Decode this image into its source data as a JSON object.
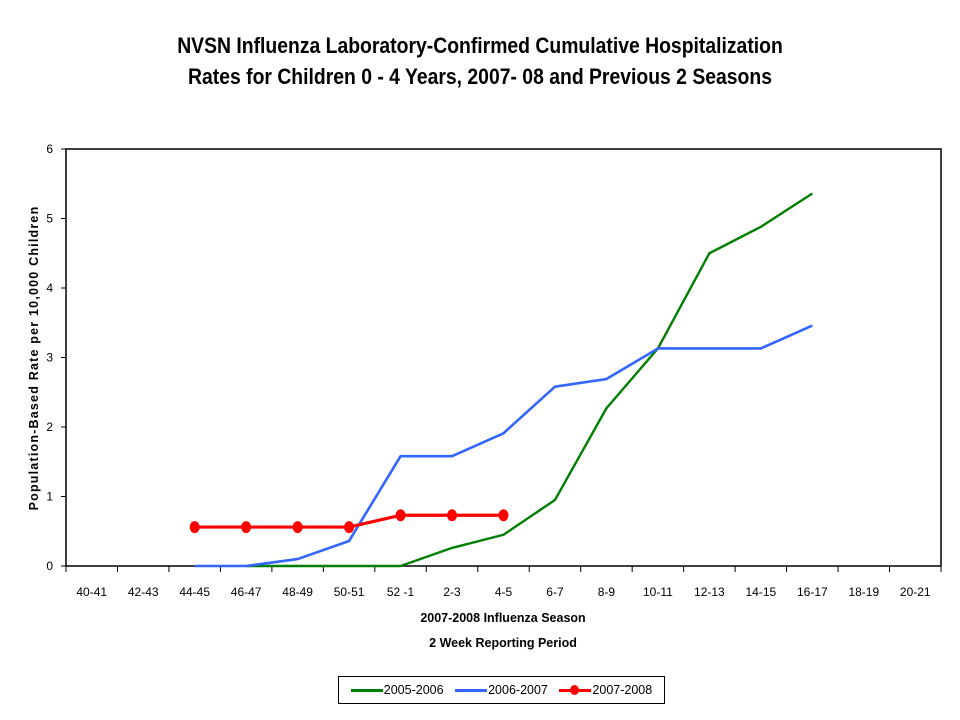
{
  "chart_data": {
    "type": "line",
    "title": [
      "NVSN Influenza Laboratory-Confirmed Cumulative Hospitalization",
      "Rates for Children 0 - 4 Years, 2007- 08 and Previous 2 Seasons"
    ],
    "xlabel": [
      "2007-2008 Influenza Season",
      "2 Week Reporting Period"
    ],
    "ylabel": "Population-Based Rate per 10,000 Children",
    "ylim": [
      0,
      6
    ],
    "yticks": [
      "0",
      "1",
      "2",
      "3",
      "4",
      "5",
      "6"
    ],
    "categories": [
      "40-41",
      "42-43",
      "44-45",
      "46-47",
      "48-49",
      "50-51",
      "52 -1",
      "2-3",
      "4-5",
      "6-7",
      "8-9",
      "10-11",
      "12-13",
      "14-15",
      "16-17",
      "18-19",
      "20-21"
    ],
    "grid": false,
    "legend_position": "bottom",
    "series": [
      {
        "name": "2005-2006",
        "color": "#007f00",
        "markers": false,
        "values": [
          null,
          null,
          null,
          0,
          0,
          0,
          0,
          0.26,
          0.45,
          0.95,
          2.27,
          3.13,
          4.5,
          4.88,
          5.36,
          null,
          null
        ]
      },
      {
        "name": "2006-2007",
        "color": "#3366ff",
        "markers": false,
        "values": [
          null,
          null,
          0,
          0,
          0.1,
          0.36,
          1.58,
          1.58,
          1.91,
          2.58,
          2.69,
          3.13,
          3.13,
          3.13,
          3.46,
          null,
          null
        ]
      },
      {
        "name": "2007-2008",
        "color": "#ff0000",
        "markers": true,
        "values": [
          null,
          null,
          0.56,
          0.56,
          0.56,
          0.56,
          0.73,
          0.73,
          0.73,
          null,
          null,
          null,
          null,
          null,
          null,
          null,
          null
        ]
      }
    ]
  }
}
